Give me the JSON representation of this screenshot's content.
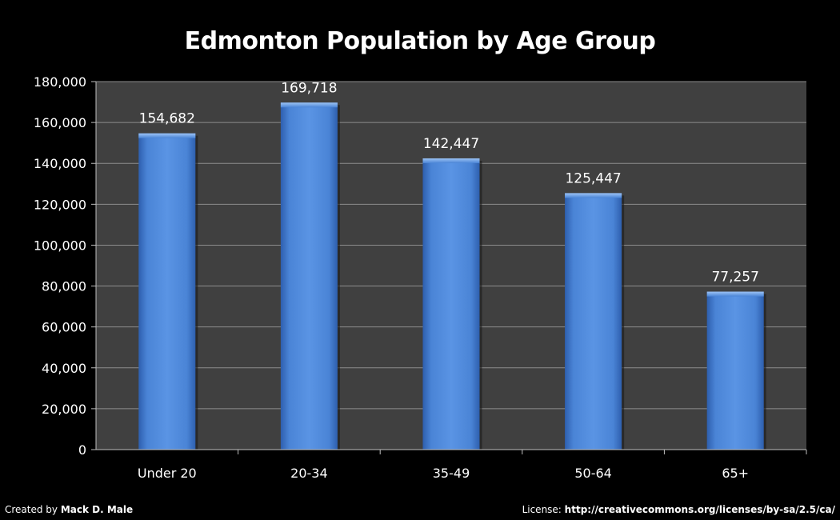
{
  "chart_data": {
    "type": "bar",
    "title": "Edmonton Population by Age Group",
    "categories": [
      "Under 20",
      "20-34",
      "35-49",
      "50-64",
      "65+"
    ],
    "values": [
      154682,
      169718,
      142447,
      125447,
      77257
    ],
    "value_labels": [
      "154,682",
      "169,718",
      "142,447",
      "125,447",
      "77,257"
    ],
    "xlabel": "",
    "ylabel": "",
    "ylim": [
      0,
      180000
    ],
    "yticks": [
      0,
      20000,
      40000,
      60000,
      80000,
      100000,
      120000,
      140000,
      160000,
      180000
    ],
    "ytick_labels": [
      "0",
      "20,000",
      "40,000",
      "60,000",
      "80,000",
      "100,000",
      "120,000",
      "140,000",
      "160,000",
      "180,000"
    ],
    "grid": true,
    "bar_color": "#4a84d6",
    "plot_background": "#404040"
  },
  "footer": {
    "credit_prefix": "Created by ",
    "credit_name": "Mack D. Male",
    "license_prefix": "License: ",
    "license_url": "http://creativecommons.org/licenses/by-sa/2.5/ca/"
  }
}
